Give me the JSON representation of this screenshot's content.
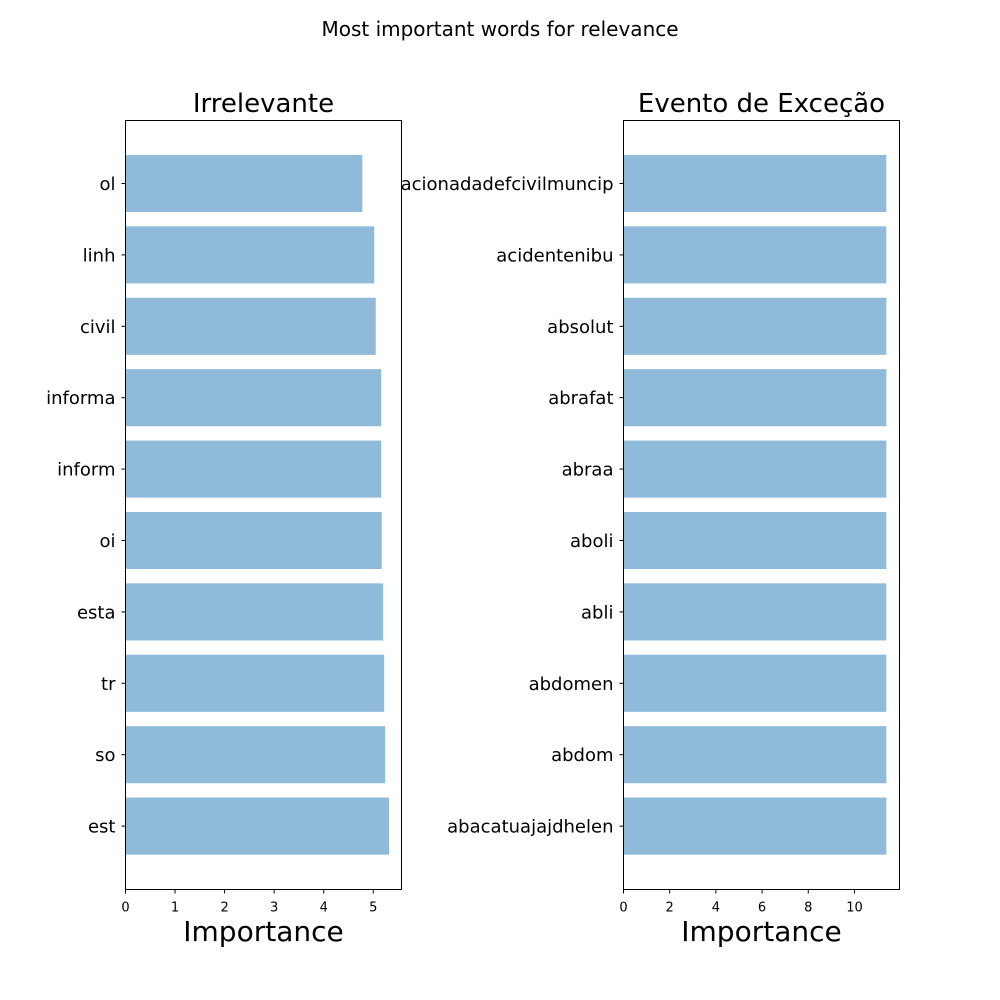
{
  "figure": {
    "suptitle": "Most important words for relevance"
  },
  "colors": {
    "bar": "#8fbad9",
    "axis": "#000000",
    "background": "#ffffff"
  },
  "chart_data": [
    {
      "type": "bar",
      "orientation": "horizontal",
      "title": "Irrelevante",
      "xlabel": "Importance",
      "ylabel": "",
      "xlim": [
        0,
        5.57
      ],
      "xticks": [
        0,
        1,
        2,
        3,
        4,
        5
      ],
      "grid": false,
      "categories": [
        "ol",
        "linh",
        "civil",
        "informa",
        "inform",
        "oi",
        "esta",
        "tr",
        "so",
        "est"
      ],
      "values": [
        4.78,
        5.02,
        5.05,
        5.16,
        5.16,
        5.17,
        5.2,
        5.22,
        5.24,
        5.32
      ]
    },
    {
      "type": "bar",
      "orientation": "horizontal",
      "title": "Evento de Exceção",
      "xlabel": "Importance",
      "ylabel": "",
      "xlim": [
        0,
        11.95
      ],
      "xticks": [
        0,
        2,
        4,
        6,
        8,
        10
      ],
      "grid": false,
      "categories": [
        "acionadadefcivilmuncip",
        "acidentenibu",
        "absolut",
        "abrafat",
        "abraa",
        "aboli",
        "abli",
        "abdomen",
        "abdom",
        "abacatuajajdhelen"
      ],
      "values": [
        11.38,
        11.38,
        11.38,
        11.38,
        11.38,
        11.38,
        11.38,
        11.38,
        11.38,
        11.38
      ]
    }
  ]
}
